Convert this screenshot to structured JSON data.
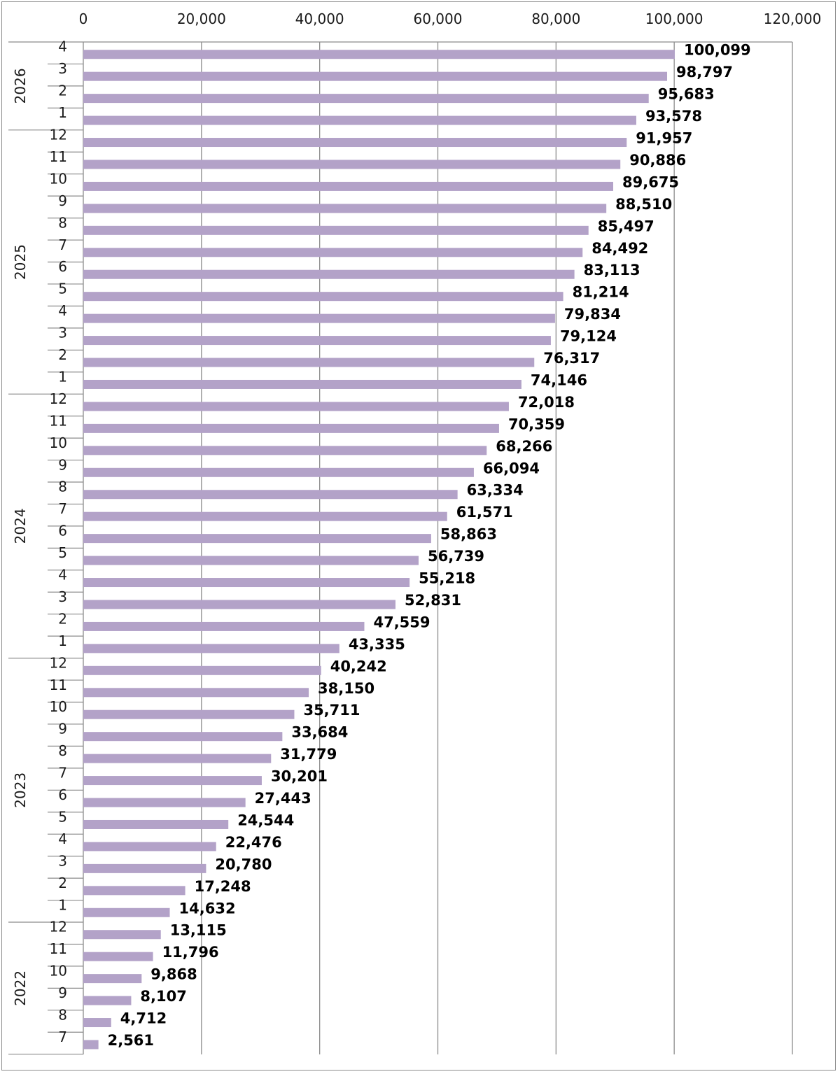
{
  "chart_data": {
    "type": "bar",
    "orientation": "horizontal",
    "xlim": [
      0,
      120000
    ],
    "xticks": [
      "0",
      "20,000",
      "40,000",
      "60,000",
      "80,000",
      "100,000",
      "120,000"
    ],
    "xtick_values": [
      0,
      20000,
      40000,
      60000,
      80000,
      100000,
      120000
    ],
    "grid": "vertical",
    "bar_color": "#b3a2c8",
    "axis_position": "top",
    "groups": [
      {
        "year": "2026",
        "months": [
          "4",
          "3",
          "2",
          "1"
        ],
        "values": [
          100099,
          98797,
          95683,
          93578
        ],
        "labels": [
          "100,099",
          "98,797",
          "95,683",
          "93,578"
        ]
      },
      {
        "year": "2025",
        "months": [
          "12",
          "11",
          "10",
          "9",
          "8",
          "7",
          "6",
          "5",
          "4",
          "3",
          "2",
          "1"
        ],
        "values": [
          91957,
          90886,
          89675,
          88510,
          85497,
          84492,
          83113,
          81214,
          79834,
          79124,
          76317,
          74146
        ],
        "labels": [
          "91,957",
          "90,886",
          "89,675",
          "88,510",
          "85,497",
          "84,492",
          "83,113",
          "81,214",
          "79,834",
          "79,124",
          "76,317",
          "74,146"
        ]
      },
      {
        "year": "2024",
        "months": [
          "12",
          "11",
          "10",
          "9",
          "8",
          "7",
          "6",
          "5",
          "4",
          "3",
          "2",
          "1"
        ],
        "values": [
          72018,
          70359,
          68266,
          66094,
          63334,
          61571,
          58863,
          56739,
          55218,
          52831,
          47559,
          43335
        ],
        "labels": [
          "72,018",
          "70,359",
          "68,266",
          "66,094",
          "63,334",
          "61,571",
          "58,863",
          "56,739",
          "55,218",
          "52,831",
          "47,559",
          "43,335"
        ]
      },
      {
        "year": "2023",
        "months": [
          "12",
          "11",
          "10",
          "9",
          "8",
          "7",
          "6",
          "5",
          "4",
          "3",
          "2",
          "1"
        ],
        "values": [
          40242,
          38150,
          35711,
          33684,
          31779,
          30201,
          27443,
          24544,
          22476,
          20780,
          17248,
          14632
        ],
        "labels": [
          "40,242",
          "38,150",
          "35,711",
          "33,684",
          "31,779",
          "30,201",
          "27,443",
          "24,544",
          "22,476",
          "20,780",
          "17,248",
          "14,632"
        ]
      },
      {
        "year": "2022",
        "months": [
          "12",
          "11",
          "10",
          "9",
          "8",
          "7"
        ],
        "values": [
          13115,
          11796,
          9868,
          8107,
          4712,
          2561
        ],
        "labels": [
          "13,115",
          "11,796",
          "9,868",
          "8,107",
          "4,712",
          "2,561"
        ]
      }
    ]
  }
}
